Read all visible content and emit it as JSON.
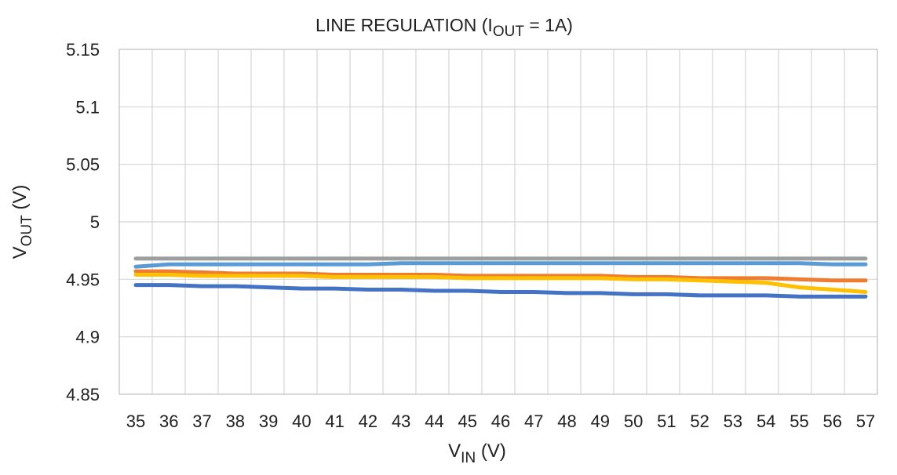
{
  "chart_data": {
    "type": "line",
    "title": {
      "prefix": "LINE REGULATION  (I",
      "subscript": "OUT",
      "suffix": " = 1A)"
    },
    "xlabel": {
      "main": "V",
      "subscript": "IN",
      "suffix": " (V)"
    },
    "ylabel": {
      "main": "V",
      "subscript": "OUT",
      "suffix": " (V)"
    },
    "x": [
      35,
      36,
      37,
      38,
      39,
      40,
      41,
      42,
      43,
      44,
      45,
      46,
      47,
      48,
      49,
      50,
      51,
      52,
      53,
      54,
      55,
      56,
      57
    ],
    "x_tick_labels": [
      "35",
      "36",
      "37",
      "38",
      "39",
      "40",
      "41",
      "42",
      "43",
      "44",
      "45",
      "46",
      "47",
      "48",
      "49",
      "50",
      "51",
      "52",
      "53",
      "54",
      "55",
      "56",
      "57"
    ],
    "y_ticks": [
      4.85,
      4.9,
      4.95,
      5,
      5.05,
      5.1,
      5.15
    ],
    "y_tick_labels": [
      "4.85",
      "4.9",
      "4.95",
      "5",
      "5.05",
      "5.1",
      "5.15"
    ],
    "ylim": [
      4.85,
      5.15
    ],
    "grid": true,
    "series": [
      {
        "color": "#9e9e9e",
        "values": [
          4.968,
          4.968,
          4.968,
          4.968,
          4.968,
          4.968,
          4.968,
          4.968,
          4.968,
          4.968,
          4.968,
          4.968,
          4.968,
          4.968,
          4.968,
          4.968,
          4.968,
          4.968,
          4.968,
          4.968,
          4.968,
          4.968,
          4.968
        ]
      },
      {
        "color": "#ed7d31",
        "values": [
          4.957,
          4.957,
          4.956,
          4.955,
          4.955,
          4.955,
          4.954,
          4.954,
          4.954,
          4.954,
          4.953,
          4.953,
          4.953,
          4.953,
          4.953,
          4.952,
          4.952,
          4.951,
          4.951,
          4.951,
          4.95,
          4.949,
          4.949
        ]
      },
      {
        "color": "#ffc000",
        "values": [
          4.954,
          4.954,
          4.953,
          4.953,
          4.953,
          4.953,
          4.952,
          4.952,
          4.952,
          4.952,
          4.951,
          4.951,
          4.951,
          4.951,
          4.951,
          4.95,
          4.95,
          4.949,
          4.948,
          4.947,
          4.943,
          4.941,
          4.939
        ]
      },
      {
        "color": "#4472c4",
        "values": [
          4.945,
          4.945,
          4.944,
          4.944,
          4.943,
          4.942,
          4.942,
          4.941,
          4.941,
          4.94,
          4.94,
          4.939,
          4.939,
          4.938,
          4.938,
          4.937,
          4.937,
          4.936,
          4.936,
          4.936,
          4.935,
          4.935,
          4.935
        ]
      },
      {
        "color": "#5b9bd5",
        "values": [
          4.961,
          4.963,
          4.963,
          4.963,
          4.963,
          4.963,
          4.963,
          4.963,
          4.964,
          4.964,
          4.964,
          4.964,
          4.964,
          4.964,
          4.964,
          4.964,
          4.964,
          4.964,
          4.964,
          4.964,
          4.964,
          4.963,
          4.963
        ]
      }
    ]
  }
}
